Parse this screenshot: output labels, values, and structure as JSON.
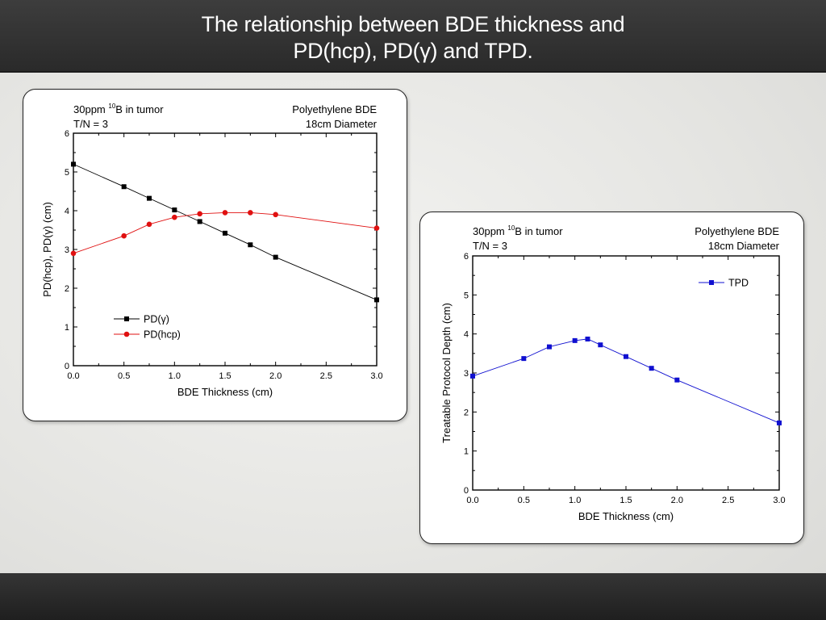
{
  "slide": {
    "title_line1": "The relationship between BDE thickness and",
    "title_line2": "PD(hcp), PD(γ) and TPD."
  },
  "chart_data": [
    {
      "type": "line",
      "annotations": {
        "top_left_line1_pre": "30ppm ",
        "top_left_line1_sup": "10",
        "top_left_line1_post": "B in tumor",
        "top_left_line2": "T/N = 3",
        "top_right_line1": "Polyethylene BDE",
        "top_right_line2": "18cm Diameter"
      },
      "xlabel": "BDE Thickness (cm)",
      "ylabel": "PD(hcp), PD(γ) (cm)",
      "xlim": [
        0,
        3
      ],
      "ylim": [
        0,
        6
      ],
      "xticks": [
        "0.0",
        "0.5",
        "1.0",
        "1.5",
        "2.0",
        "2.5",
        "3.0"
      ],
      "yticks": [
        "0",
        "1",
        "2",
        "3",
        "4",
        "5",
        "6"
      ],
      "grid": false,
      "legend_position": "bottom-left",
      "series": [
        {
          "name": "PD(γ)",
          "color": "#000000",
          "marker": "square",
          "x": [
            0.0,
            0.5,
            0.75,
            1.0,
            1.25,
            1.5,
            1.75,
            2.0,
            3.0
          ],
          "y": [
            5.2,
            4.62,
            4.32,
            4.02,
            3.72,
            3.42,
            3.12,
            2.8,
            1.7
          ]
        },
        {
          "name": "PD(hcp)",
          "color": "#e01010",
          "marker": "circle",
          "x": [
            0.0,
            0.5,
            0.75,
            1.0,
            1.25,
            1.5,
            1.75,
            2.0,
            3.0
          ],
          "y": [
            2.9,
            3.35,
            3.65,
            3.83,
            3.92,
            3.95,
            3.95,
            3.9,
            3.55
          ]
        }
      ]
    },
    {
      "type": "line",
      "annotations": {
        "top_left_line1_pre": "30ppm ",
        "top_left_line1_sup": "10",
        "top_left_line1_post": "B in tumor",
        "top_left_line2": "T/N = 3",
        "top_right_line1": "Polyethylene BDE",
        "top_right_line2": "18cm Diameter"
      },
      "xlabel": "BDE Thickness (cm)",
      "ylabel": "Treatable Protocol Depth (cm)",
      "xlim": [
        0,
        3
      ],
      "ylim": [
        0,
        6
      ],
      "xticks": [
        "0.0",
        "0.5",
        "1.0",
        "1.5",
        "2.0",
        "2.5",
        "3.0"
      ],
      "yticks": [
        "0",
        "1",
        "2",
        "3",
        "4",
        "5",
        "6"
      ],
      "grid": false,
      "legend_position": "top-right",
      "series": [
        {
          "name": "TPD",
          "color": "#1010d0",
          "marker": "square",
          "x": [
            0.0,
            0.5,
            0.75,
            1.0,
            1.125,
            1.25,
            1.5,
            1.75,
            2.0,
            3.0
          ],
          "y": [
            2.92,
            3.37,
            3.67,
            3.83,
            3.87,
            3.72,
            3.42,
            3.12,
            2.82,
            1.72
          ]
        }
      ]
    }
  ]
}
